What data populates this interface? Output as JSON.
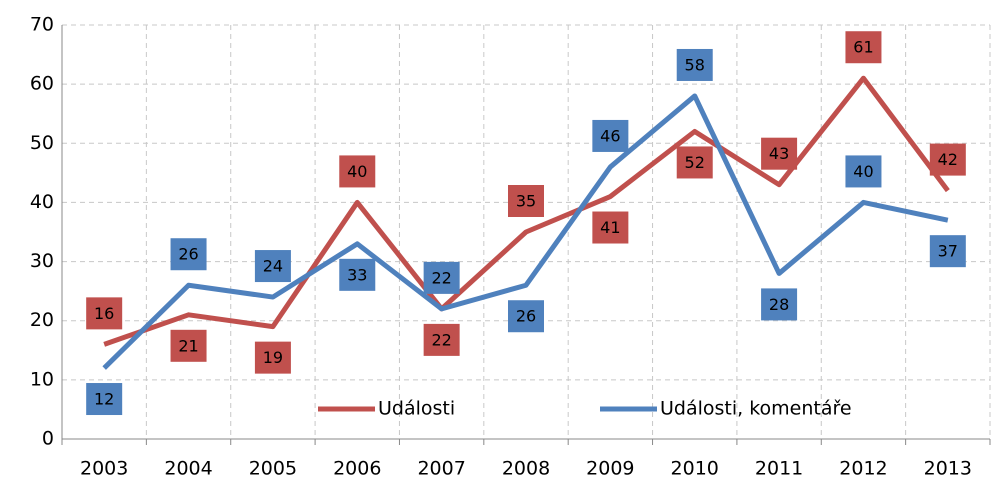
{
  "chart_data": {
    "type": "line",
    "categories": [
      "2003",
      "2004",
      "2005",
      "2006",
      "2007",
      "2008",
      "2009",
      "2010",
      "2011",
      "2012",
      "2013"
    ],
    "series": [
      {
        "name": "Události",
        "color": "#c0504d",
        "values": [
          16,
          21,
          19,
          40,
          22,
          35,
          41,
          52,
          43,
          61,
          42
        ]
      },
      {
        "name": "Události, komentáře",
        "color": "#4f81bd",
        "values": [
          12,
          26,
          24,
          33,
          22,
          26,
          46,
          58,
          28,
          40,
          37
        ]
      }
    ],
    "ylim": [
      0,
      70
    ],
    "yticks": [
      0,
      10,
      20,
      30,
      40,
      50,
      60,
      70
    ],
    "grid": true,
    "legend": "bottom"
  }
}
